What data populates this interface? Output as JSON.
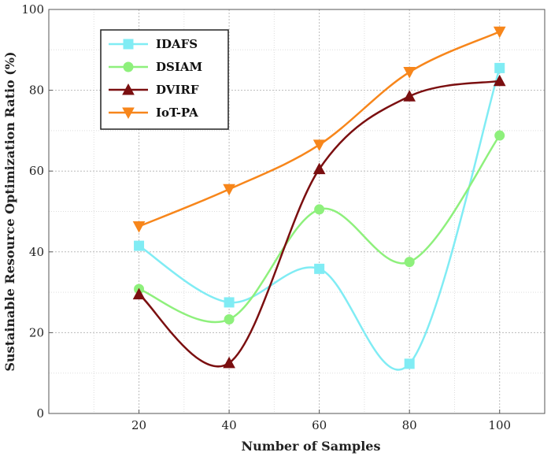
{
  "chart_data": {
    "type": "line",
    "xlabel": "Number of Samples",
    "ylabel": "Sustainable Resource Optimization Ratio (%)",
    "x": [
      20,
      40,
      60,
      80,
      100
    ],
    "xlim": [
      0,
      110
    ],
    "ylim": [
      0,
      100
    ],
    "xticks": [
      "20",
      "40",
      "60",
      "80",
      "100"
    ],
    "yticks": [
      "0",
      "20",
      "40",
      "60",
      "80",
      "100"
    ],
    "grid": true,
    "legend_position": "top-left",
    "series": [
      {
        "name": "IDAFS",
        "values": [
          41.5,
          27.5,
          35.8,
          12.3,
          85.5
        ],
        "color": "#80ecf4",
        "marker": "square"
      },
      {
        "name": "DSIAM",
        "values": [
          30.8,
          23.3,
          50.5,
          37.5,
          68.8
        ],
        "color": "#8ef07c",
        "marker": "circle"
      },
      {
        "name": "DVIRF",
        "values": [
          29.5,
          12.5,
          60.5,
          78.5,
          82.3
        ],
        "color": "#7b0f10",
        "marker": "triangle-up"
      },
      {
        "name": "IoT-PA",
        "values": [
          46.3,
          55.5,
          66.5,
          84.5,
          94.5
        ],
        "color": "#f7861b",
        "marker": "triangle-down"
      }
    ]
  }
}
